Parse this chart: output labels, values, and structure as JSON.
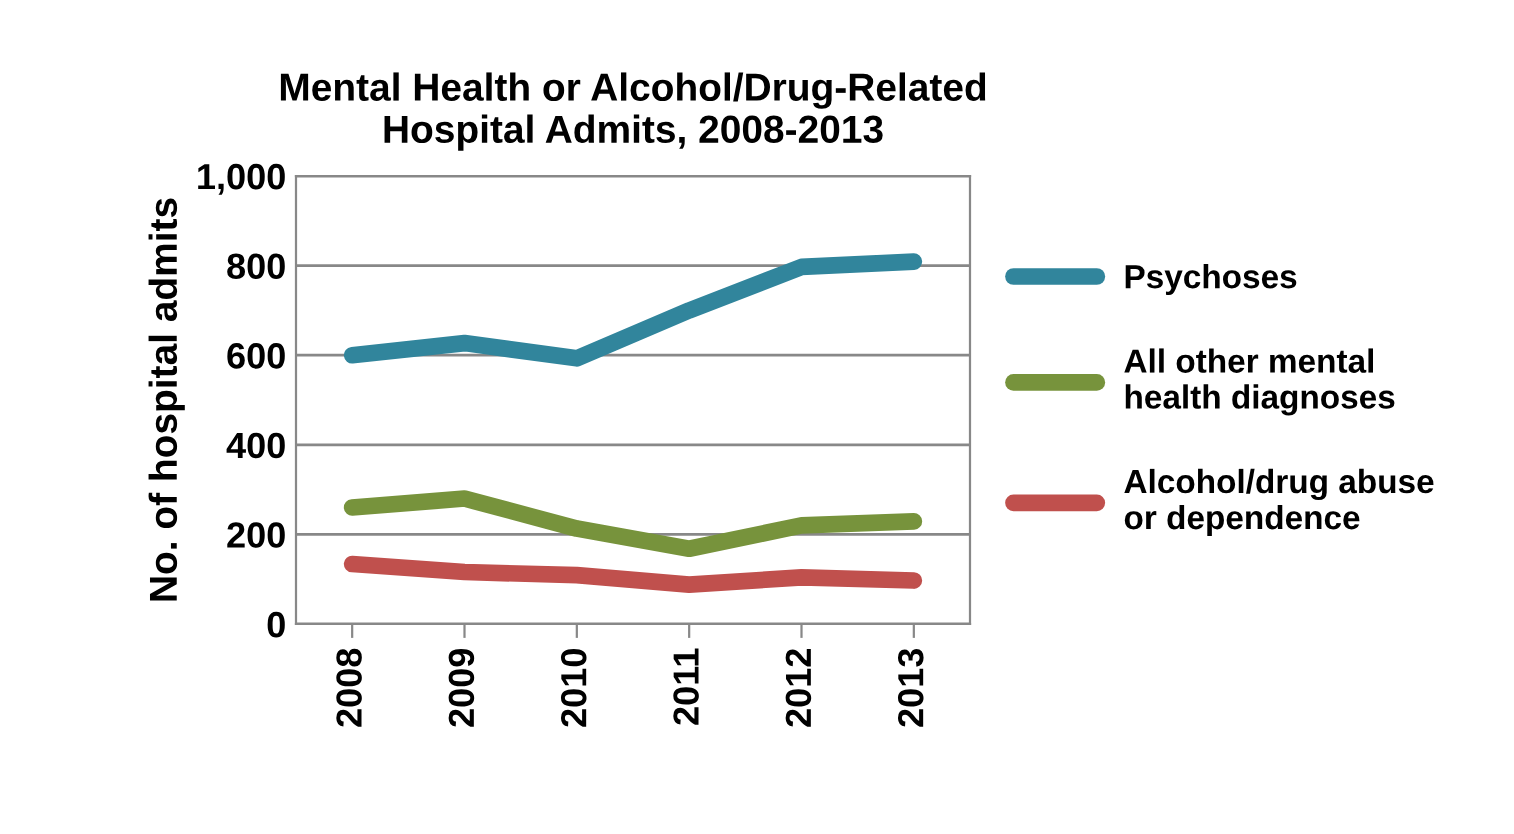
{
  "chart_data": {
    "type": "line",
    "title": "Mental Health or Alcohol/Drug-Related\nHospital Admits, 2008-2013",
    "ylabel": "No. of hospital admits",
    "categories": [
      "2008",
      "2009",
      "2010",
      "2011",
      "2012",
      "2013"
    ],
    "series": [
      {
        "name": "Psychoses",
        "color": "#31859c",
        "values": [
          600,
          627,
          593,
          700,
          797,
          809
        ]
      },
      {
        "name": "All other mental\nhealth diagnoses",
        "color": "#77933c",
        "values": [
          260,
          280,
          213,
          168,
          220,
          229
        ]
      },
      {
        "name": "Alcohol/drug abuse\nor dependence",
        "color": "#c0504d",
        "values": [
          134,
          116,
          109,
          88,
          104,
          97
        ]
      }
    ],
    "ylim": [
      0,
      1000
    ],
    "yticks": [
      0,
      {
        "value": 200,
        "label": "200"
      },
      {
        "value": 400,
        "label": "400"
      },
      {
        "value": 600,
        "label": "600"
      },
      {
        "value": 800,
        "label": "800"
      },
      {
        "value": 1000,
        "label": "1,000"
      }
    ],
    "grid": "y",
    "legend": "right",
    "marker": "none",
    "line_style": "solid"
  }
}
